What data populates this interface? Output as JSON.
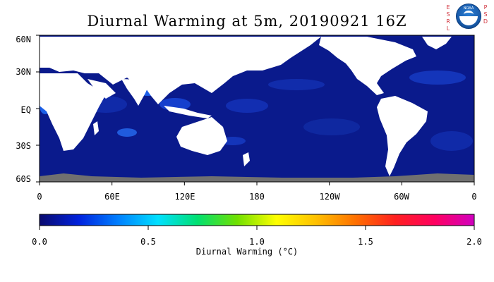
{
  "title": "Diurnal Warming at 5m, 20190921 16Z",
  "logo": {
    "left_letters": [
      "E",
      "S",
      "R",
      "L"
    ],
    "right_letters": [
      "P",
      "S",
      "D"
    ],
    "badge_text": "NOAA"
  },
  "map": {
    "lat_labels": [
      "60N",
      "30N",
      "EQ",
      "30S",
      "60S"
    ],
    "lon_labels": [
      "0",
      "60E",
      "120E",
      "180",
      "120W",
      "60W",
      "0"
    ],
    "ocean_color": "#0a1a8c",
    "land_color": "#ffffff",
    "no_data_color": "#707070"
  },
  "colorbar": {
    "ticks": [
      "0.0",
      "0.5",
      "1.0",
      "1.5",
      "2.0"
    ],
    "label": "Diurnal Warming (°C)",
    "range": [
      0.0,
      2.0
    ],
    "colors": [
      "#0a0a6e",
      "#0022dd",
      "#0080ff",
      "#00e0ff",
      "#00e070",
      "#70e000",
      "#ffff00",
      "#ffc000",
      "#ff7000",
      "#ff2020",
      "#ff0060",
      "#d000c0"
    ]
  }
}
